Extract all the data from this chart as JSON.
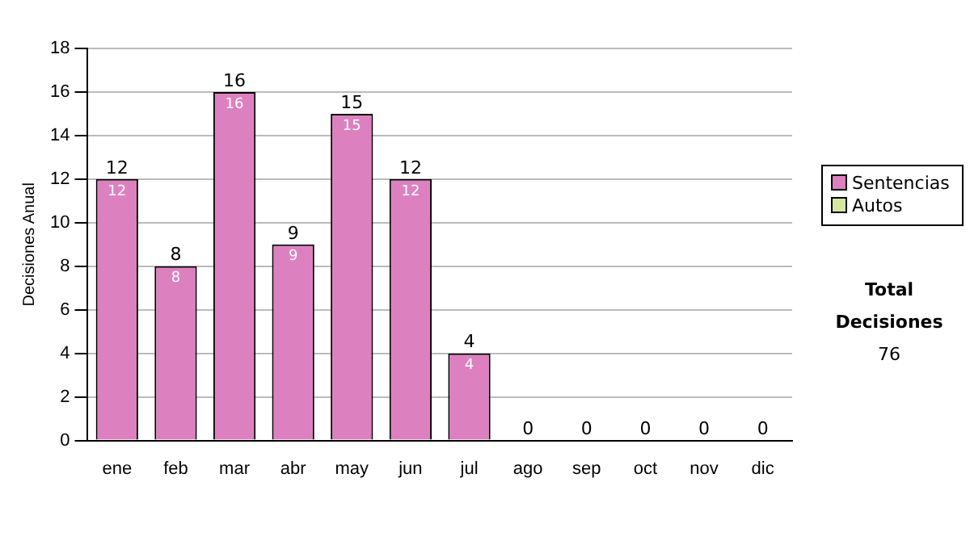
{
  "chart_data": {
    "type": "bar",
    "stacked": true,
    "ylabel": "Decisiones Anual",
    "categories": [
      "ene",
      "feb",
      "mar",
      "abr",
      "may",
      "jun",
      "jul",
      "ago",
      "sep",
      "oct",
      "nov",
      "dic"
    ],
    "series": [
      {
        "name": "Sentencias",
        "color": "#dd80c0",
        "values": [
          12,
          8,
          16,
          9,
          15,
          12,
          4,
          0,
          0,
          0,
          0,
          0
        ],
        "value_labels": [
          "12",
          "8",
          "16",
          "9",
          "15",
          "12",
          "4",
          null,
          null,
          null,
          null,
          null
        ]
      },
      {
        "name": "Autos",
        "color": "#d4e6a0",
        "values": [
          0,
          0,
          0,
          0,
          0,
          0,
          0,
          0,
          0,
          0,
          0,
          0
        ]
      }
    ],
    "totals": [
      "12",
      "8",
      "16",
      "9",
      "15",
      "12",
      "4",
      "0",
      "0",
      "0",
      "0",
      "0"
    ],
    "ylim": [
      0,
      18
    ],
    "yticks": [
      0,
      2,
      4,
      6,
      8,
      10,
      12,
      14,
      16,
      18
    ],
    "grid": "y",
    "legend": "right",
    "annotations": [
      "Total Decisiones",
      "76"
    ]
  }
}
